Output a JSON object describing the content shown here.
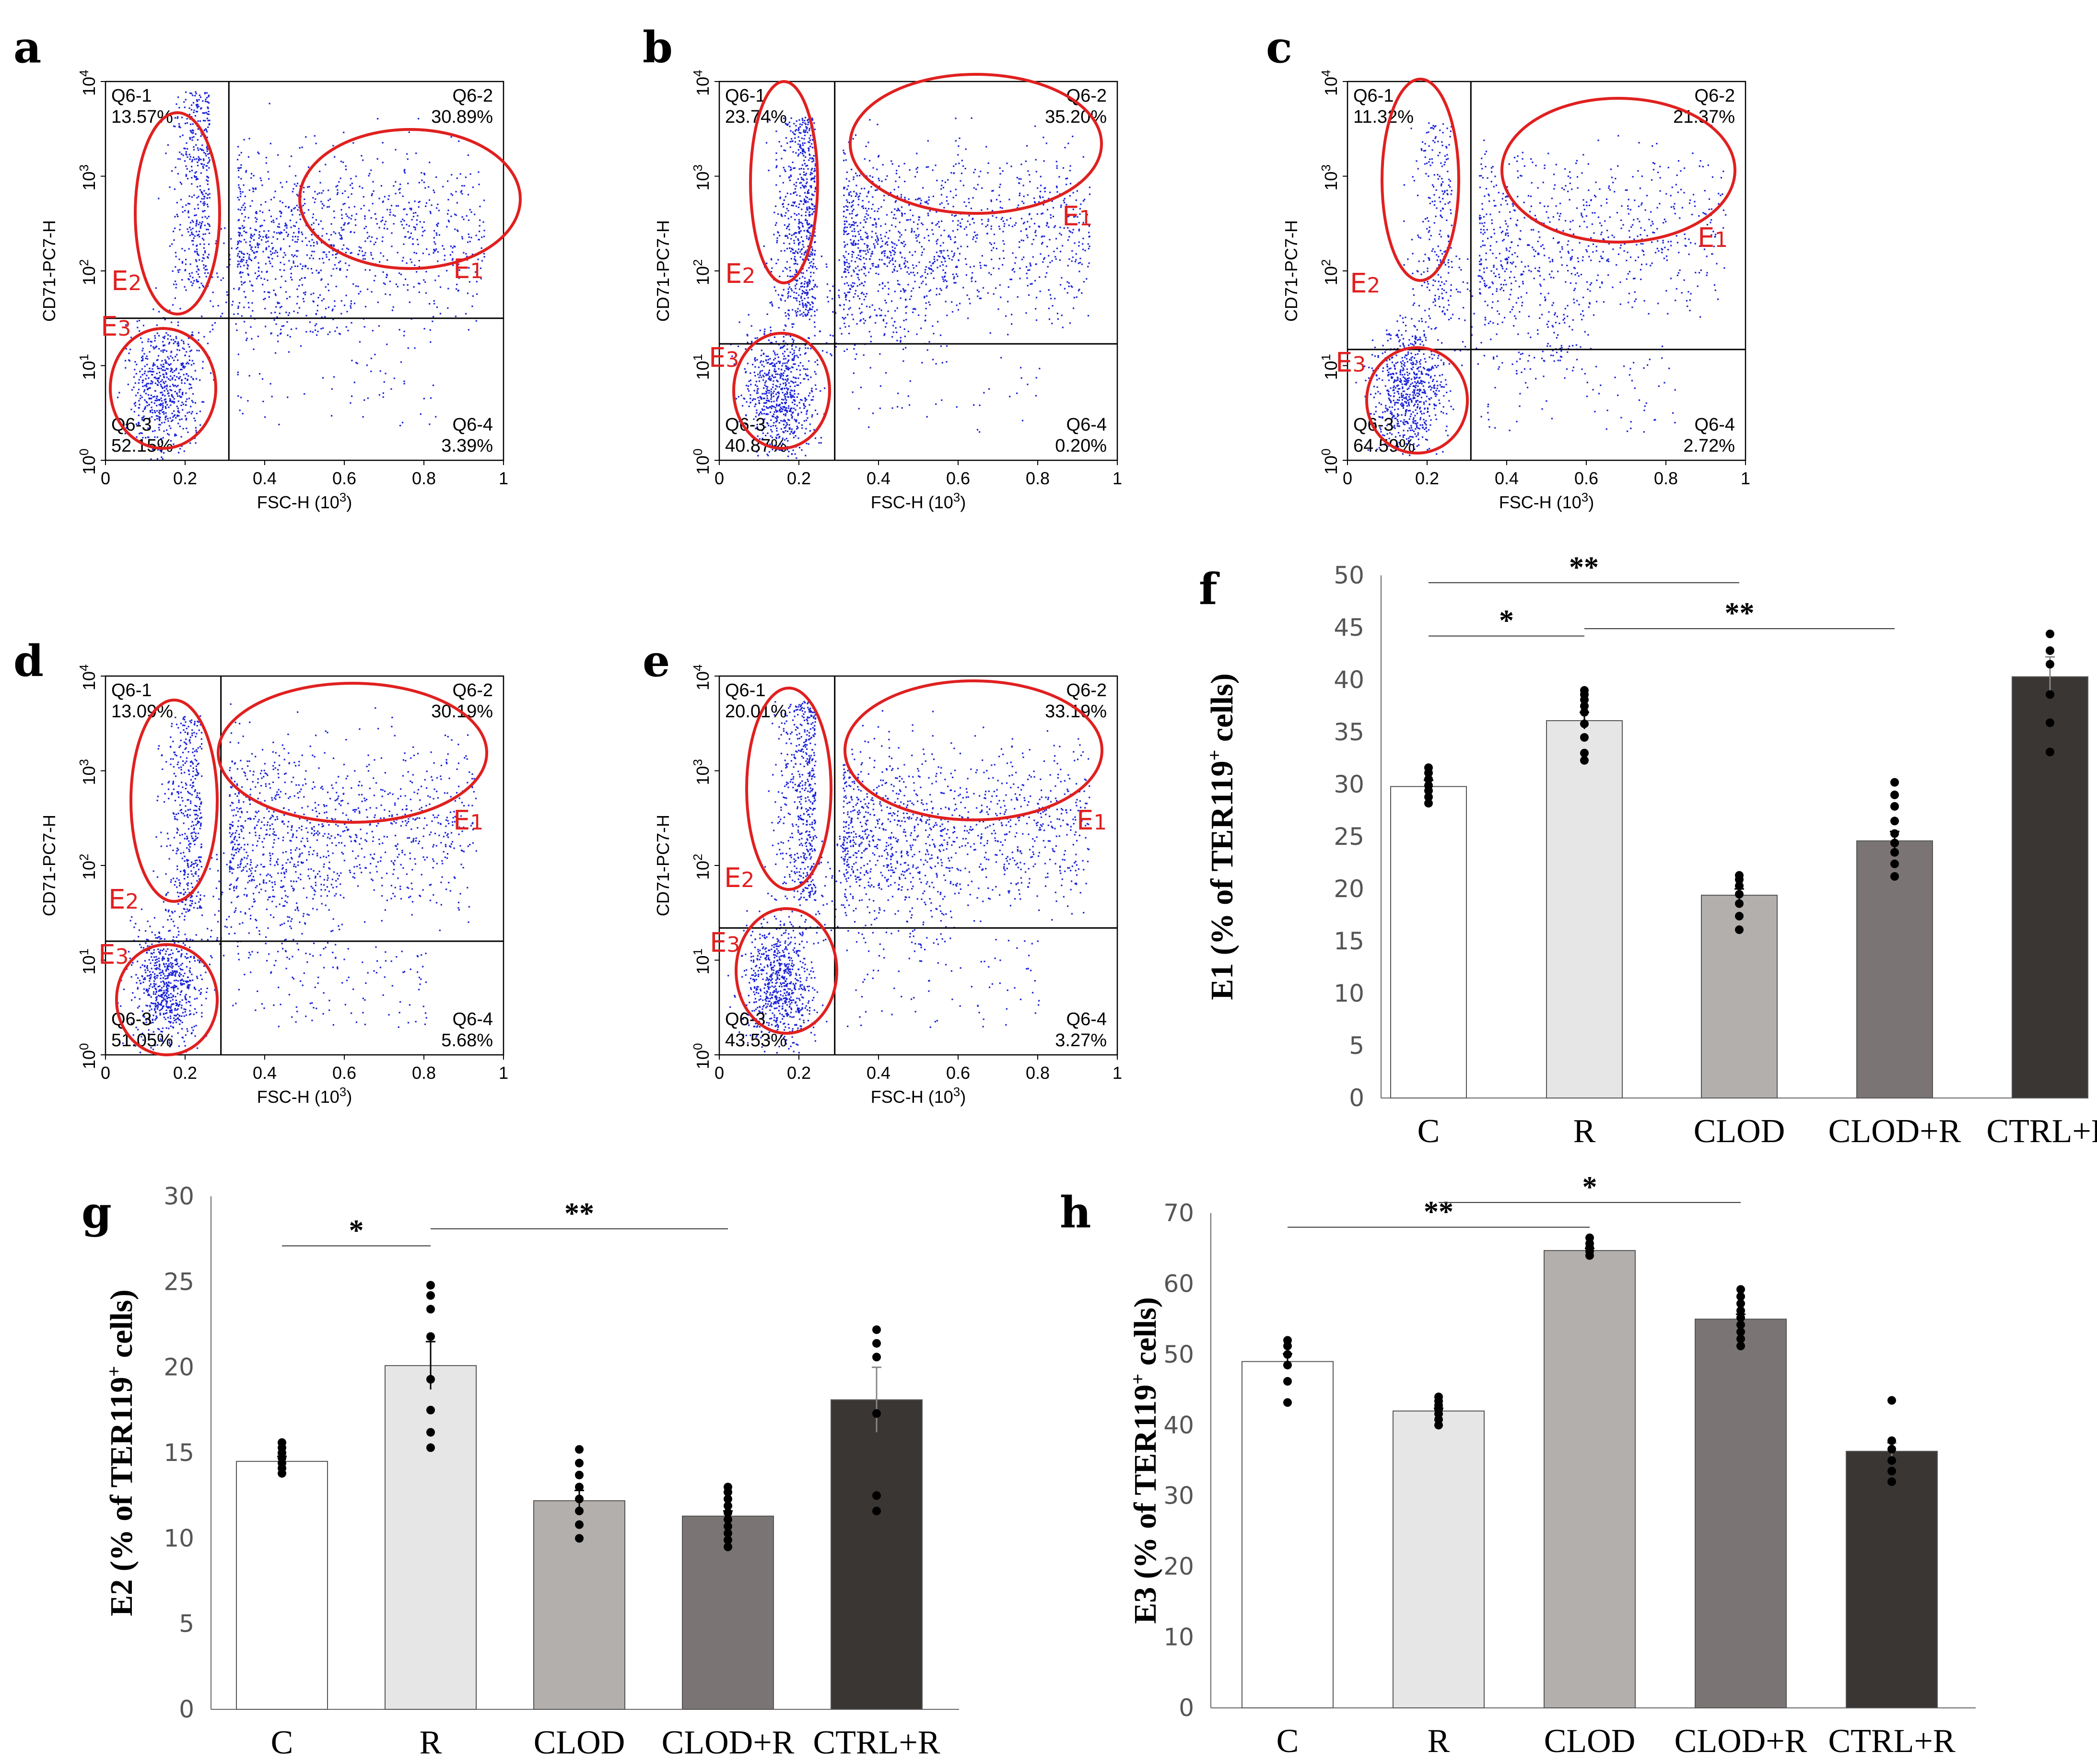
{
  "colors": {
    "dot": "#1a22d8",
    "gate": "#e02020",
    "bar_edge": "#555555",
    "sig_line": "#333333"
  },
  "flow_common": {
    "x_label": "FSC-H",
    "x_unit": "(10",
    "x_unit_exp": "3",
    "x_unit_close": ")",
    "y_label": "CD71-PC7-H",
    "x_ticks": [
      "0",
      "0.2",
      "0.4",
      "0.6",
      "0.8",
      "1"
    ],
    "y_tick_base": "10",
    "y_tick_exps": [
      "0",
      "1",
      "2",
      "3",
      "4"
    ],
    "gate_labels": {
      "e1": "E1",
      "e2": "E2",
      "e3": "E3"
    }
  },
  "chart_data": [
    {
      "panel": "a",
      "type": "scatter",
      "xlabel": "FSC-H (10^3)",
      "ylabel": "CD71-PC7-H",
      "xlim": [
        0,
        1
      ],
      "ylim_log10": [
        0,
        4
      ],
      "gate_x": 0.31,
      "gate_y_log10": 1.5,
      "quadrants": [
        {
          "name": "Q6-1",
          "value": "13.57%"
        },
        {
          "name": "Q6-2",
          "value": "30.89%"
        },
        {
          "name": "Q6-3",
          "value": "52.15%"
        },
        {
          "name": "Q6-4",
          "value": "3.39%"
        }
      ]
    },
    {
      "panel": "b",
      "type": "scatter",
      "xlabel": "FSC-H (10^3)",
      "ylabel": "CD71-PC7-H",
      "xlim": [
        0,
        1
      ],
      "ylim_log10": [
        0,
        4
      ],
      "gate_x": 0.29,
      "gate_y_log10": 1.23,
      "quadrants": [
        {
          "name": "Q6-1",
          "value": "23.74%"
        },
        {
          "name": "Q6-2",
          "value": "35.20%"
        },
        {
          "name": "Q6-3",
          "value": "40.87%"
        },
        {
          "name": "Q6-4",
          "value": "0.20%"
        }
      ]
    },
    {
      "panel": "c",
      "type": "scatter",
      "xlabel": "FSC-H (10^3)",
      "ylabel": "CD71-PC7-H",
      "xlim": [
        0,
        1
      ],
      "ylim_log10": [
        0,
        4
      ],
      "gate_x": 0.31,
      "gate_y_log10": 1.17,
      "quadrants": [
        {
          "name": "Q6-1",
          "value": "11.32%"
        },
        {
          "name": "Q6-2",
          "value": "21.37%"
        },
        {
          "name": "Q6-3",
          "value": "64.59%"
        },
        {
          "name": "Q6-4",
          "value": "2.72%"
        }
      ]
    },
    {
      "panel": "d",
      "type": "scatter",
      "xlabel": "FSC-H (10^3)",
      "ylabel": "CD71-PC7-H",
      "xlim": [
        0,
        1
      ],
      "ylim_log10": [
        0,
        4
      ],
      "gate_x": 0.29,
      "gate_y_log10": 1.2,
      "quadrants": [
        {
          "name": "Q6-1",
          "value": "13.09%"
        },
        {
          "name": "Q6-2",
          "value": "30.19%"
        },
        {
          "name": "Q6-3",
          "value": "51.05%"
        },
        {
          "name": "Q6-4",
          "value": "5.68%"
        }
      ]
    },
    {
      "panel": "e",
      "type": "scatter",
      "xlabel": "FSC-H (10^3)",
      "ylabel": "CD71-PC7-H",
      "xlim": [
        0,
        1
      ],
      "ylim_log10": [
        0,
        4
      ],
      "gate_x": 0.29,
      "gate_y_log10": 1.34,
      "quadrants": [
        {
          "name": "Q6-1",
          "value": "20.01%"
        },
        {
          "name": "Q6-2",
          "value": "33.19%"
        },
        {
          "name": "Q6-3",
          "value": "43.53%"
        },
        {
          "name": "Q6-4",
          "value": "3.27%"
        }
      ]
    },
    {
      "panel": "f",
      "type": "bar",
      "ylabel_pre": "E1 (% of TER119",
      "ylabel_sup": "+",
      "ylabel_post": " cells)",
      "categories": [
        "C",
        "R",
        "CLOD",
        "CLOD+R",
        "CTRL+R"
      ],
      "values": [
        29.8,
        36.1,
        19.4,
        24.6,
        40.3
      ],
      "errors": [
        0.6,
        0.8,
        0.6,
        0.9,
        1.9
      ],
      "fills": [
        "#ffffff",
        "#e6e6e6",
        "#b3afad",
        "#7a7574",
        "#3a3634"
      ],
      "points": [
        [
          28.2,
          28.8,
          29.4,
          29.9,
          30.5,
          31.1,
          31.6
        ],
        [
          32.3,
          33.0,
          34.5,
          35.8,
          36.9,
          37.5,
          38.1,
          38.6,
          39.0
        ],
        [
          16.1,
          17.4,
          18.6,
          19.5,
          20.3,
          20.9,
          21.3
        ],
        [
          21.2,
          22.4,
          23.5,
          24.4,
          25.3,
          26.5,
          27.9,
          29.0,
          30.2
        ],
        [
          33.1,
          35.9,
          38.6,
          41.5,
          42.8,
          44.4
        ]
      ],
      "yticks": [
        "0",
        "5",
        "10",
        "15",
        "20",
        "25",
        "30",
        "35",
        "40",
        "45",
        "50"
      ],
      "ylim": [
        0,
        50
      ],
      "significance": [
        {
          "from": 0,
          "to": 2,
          "y": 49.3,
          "label": "**"
        },
        {
          "from": 0,
          "to": 1,
          "y": 44.2,
          "label": "*"
        },
        {
          "from": 1,
          "to": 3,
          "y": 44.9,
          "label": "**"
        }
      ]
    },
    {
      "panel": "g",
      "type": "bar",
      "ylabel_pre": "E2 (% of  TER119",
      "ylabel_sup": "+",
      "ylabel_post": " cells)",
      "categories": [
        "C",
        "R",
        "CLOD",
        "CLOD+R",
        "CTRL+R"
      ],
      "values": [
        14.5,
        20.1,
        12.2,
        11.3,
        18.1
      ],
      "errors": [
        0.3,
        1.4,
        0.6,
        0.3,
        1.9
      ],
      "fills": [
        "#ffffff",
        "#e6e6e6",
        "#b3afad",
        "#7a7574",
        "#3a3634"
      ],
      "points": [
        [
          13.8,
          14.1,
          14.4,
          14.7,
          15.0,
          15.3,
          15.6
        ],
        [
          15.3,
          16.2,
          17.5,
          19.3,
          21.8,
          23.4,
          24.2,
          24.8
        ],
        [
          10.0,
          10.8,
          11.6,
          12.3,
          13.0,
          13.7,
          14.4,
          15.2
        ],
        [
          9.5,
          9.9,
          10.3,
          10.7,
          11.1,
          11.5,
          11.9,
          12.3,
          12.7,
          13.0
        ],
        [
          11.6,
          12.5,
          17.3,
          20.6,
          21.4,
          22.2
        ]
      ],
      "yticks": [
        "0",
        "5",
        "10",
        "15",
        "20",
        "25",
        "30"
      ],
      "ylim": [
        0,
        30
      ],
      "significance": [
        {
          "from": 0,
          "to": 1,
          "y": 27.1,
          "label": "*"
        },
        {
          "from": 1,
          "to": 3,
          "y": 28.1,
          "label": "**"
        }
      ]
    },
    {
      "panel": "h",
      "type": "bar",
      "ylabel_pre": "E3 (%  of TER119",
      "ylabel_sup": "+",
      "ylabel_post": " cells)",
      "categories": [
        "C",
        "R",
        "CLOD",
        "CLOD+R",
        "CTRL+R"
      ],
      "values": [
        49.0,
        42.0,
        64.7,
        55.0,
        36.3
      ],
      "errors": [
        1.1,
        0.4,
        0.3,
        0.7,
        1.2
      ],
      "fills": [
        "#ffffff",
        "#e6e6e6",
        "#b3afad",
        "#7a7574",
        "#3a3634"
      ],
      "points": [
        [
          43.2,
          46.2,
          48.5,
          50.0,
          51.2,
          52.0
        ],
        [
          40.0,
          40.8,
          41.6,
          42.2,
          42.8,
          43.4,
          44.0
        ],
        [
          64.0,
          64.6,
          65.1,
          65.7,
          66.5
        ],
        [
          51.2,
          52.2,
          53.2,
          54.2,
          55.2,
          56.2,
          57.2,
          58.2,
          59.2
        ],
        [
          32.0,
          33.5,
          35.0,
          36.6,
          37.8,
          43.5
        ]
      ],
      "yticks": [
        "0",
        "10",
        "20",
        "30",
        "40",
        "50",
        "60",
        "70"
      ],
      "ylim": [
        0,
        70
      ],
      "significance": [
        {
          "from": 0,
          "to": 2,
          "y": 68.0,
          "label": "**"
        },
        {
          "from": 1,
          "to": 3,
          "y": 71.5,
          "label": "*"
        }
      ]
    }
  ]
}
